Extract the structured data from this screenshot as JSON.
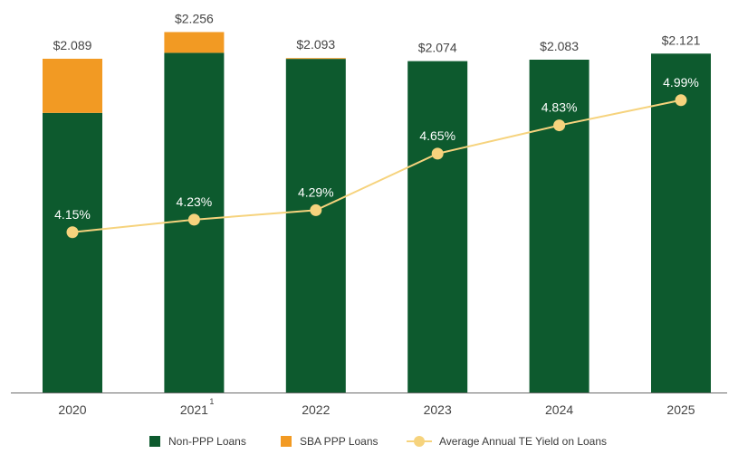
{
  "chart_data": {
    "type": "bar",
    "categories": [
      "2020",
      "2021",
      "2022",
      "2023",
      "2024",
      "2025"
    ],
    "category_superscripts": [
      "",
      "1",
      "",
      "",
      "",
      ""
    ],
    "stacked": true,
    "series": [
      {
        "name": "Non-PPP Loans",
        "values": [
          1.75,
          2.126,
          2.088,
          2.074,
          2.083,
          2.121
        ],
        "color": "#0d5a2e"
      },
      {
        "name": "SBA PPP Loans",
        "values": [
          0.339,
          0.13,
          0.005,
          0,
          0,
          0
        ],
        "color": "#f29a23"
      }
    ],
    "totals": [
      "$2.089",
      "$2.256",
      "$2.093",
      "$2.074",
      "$2.083",
      "$2.121"
    ],
    "line_series": {
      "name": "Average Annual TE Yield on Loans",
      "values": [
        4.15,
        4.23,
        4.29,
        4.65,
        4.83,
        4.99
      ],
      "labels": [
        "4.15%",
        "4.23%",
        "4.29%",
        "4.65%",
        "4.83%",
        "4.99%"
      ],
      "color": "#f6d37d",
      "ylim": [
        3.13,
        5.57
      ]
    },
    "ylim": [
      0,
      2.4
    ],
    "title": "",
    "xlabel": "",
    "ylabel": "",
    "grid": false,
    "legend_position": "bottom"
  }
}
